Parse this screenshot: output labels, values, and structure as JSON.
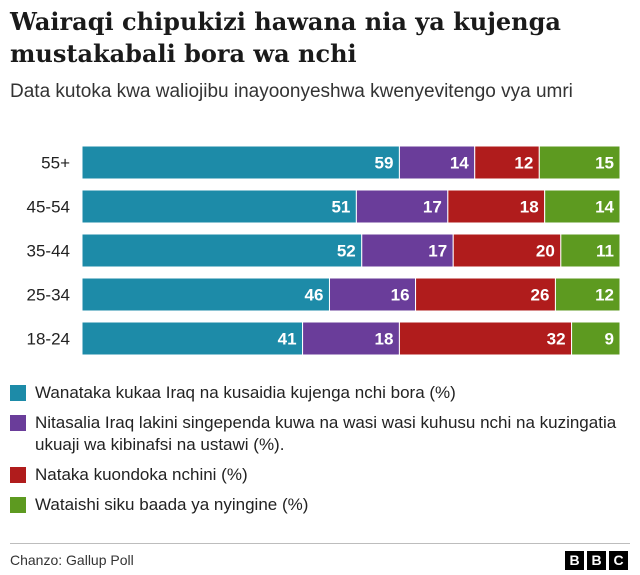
{
  "title": "Wairaqi chipukizi  hawana nia ya kujenga mustakabali bora wa nchi",
  "subtitle": "Data kutoka kwa waliojibu inayoonyeshwa kwenyevitengo vya  umri",
  "source": "Chanzo: Gallup Poll",
  "logo": [
    "B",
    "B",
    "C"
  ],
  "colors": [
    "#1d8ba8",
    "#6a3d9a",
    "#b01c1c",
    "#5d9a20"
  ],
  "chart_data": {
    "type": "bar",
    "orientation": "horizontal",
    "stacked": true,
    "title": "Wairaqi chipukizi  hawana nia ya kujenga mustakabali bora wa nchi",
    "xlabel": "",
    "ylabel": "",
    "xlim": [
      0,
      100
    ],
    "categories": [
      "55+",
      "45-54",
      "35-44",
      "25-34",
      "18-24"
    ],
    "series": [
      {
        "name": "Wanataka kukaa Iraq na kusaidia kujenga nchi bora (%)",
        "values": [
          59,
          51,
          52,
          46,
          41
        ]
      },
      {
        "name": "Nitasalia Iraq lakini singependa kuwa na wasi wasi kuhusu nchi na kuzingatia ukuaji wa kibinafsi na ustawi (%).",
        "values": [
          14,
          17,
          17,
          16,
          18
        ]
      },
      {
        "name": "Nataka kuondoka nchini (%)",
        "values": [
          12,
          18,
          20,
          26,
          32
        ]
      },
      {
        "name": "Wataishi siku baada ya nyingine (%)",
        "values": [
          15,
          14,
          11,
          12,
          9
        ]
      }
    ]
  }
}
